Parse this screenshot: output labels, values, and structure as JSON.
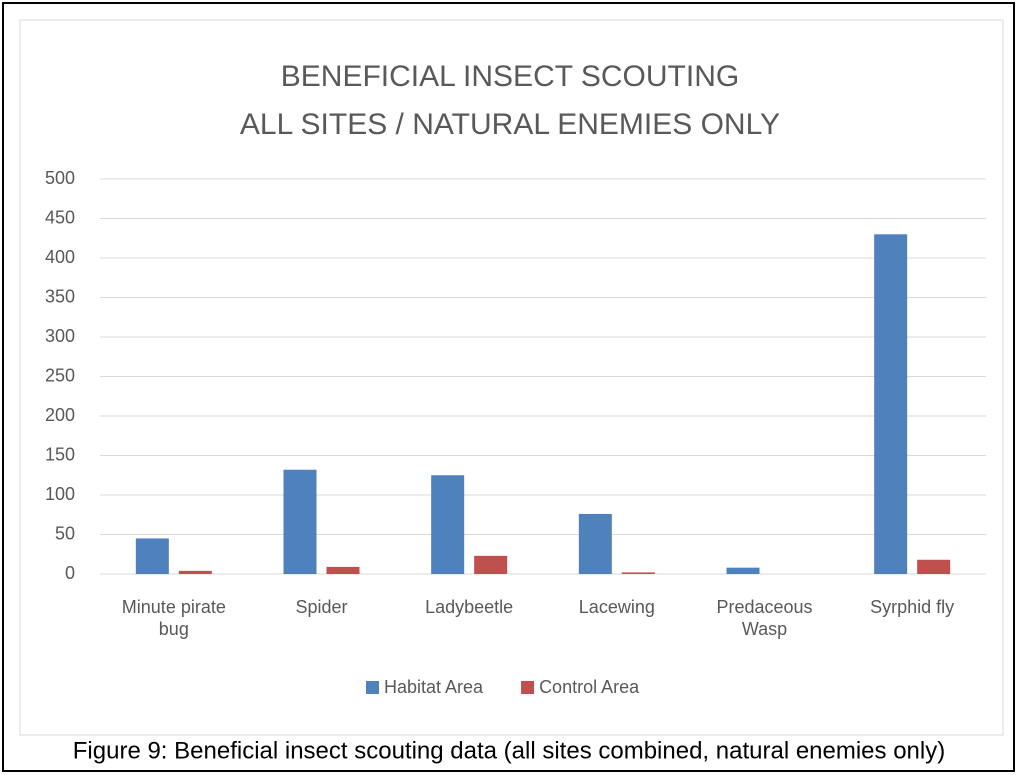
{
  "chart_data": {
    "type": "bar",
    "title": [
      "BENEFICIAL INSECT SCOUTING",
      "ALL SITES / NATURAL ENEMIES ONLY"
    ],
    "categories": [
      "Minute pirate bug",
      "Spider",
      "Ladybeetle",
      "Lacewing",
      "Predaceous Wasp",
      "Syrphid fly"
    ],
    "series": [
      {
        "name": "Habitat Area",
        "color": "#4f81bd",
        "values": [
          45,
          132,
          125,
          76,
          8,
          430
        ]
      },
      {
        "name": "Control Area",
        "color": "#c0504d",
        "values": [
          4,
          9,
          23,
          2,
          0,
          18
        ]
      }
    ],
    "ylim": [
      0,
      500
    ],
    "yticks": [
      0,
      50,
      100,
      150,
      200,
      250,
      300,
      350,
      400,
      450,
      500
    ],
    "grid": true,
    "legend": "bottom",
    "caption": "Figure 9: Beneficial insect scouting data (all sites combined, natural enemies only)"
  }
}
